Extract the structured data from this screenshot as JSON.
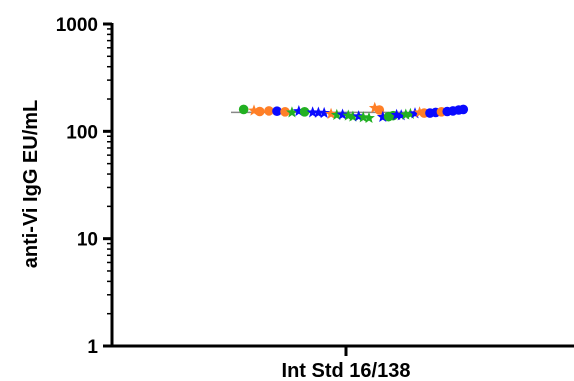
{
  "chart_data": {
    "type": "scatter",
    "title": "",
    "xlabel": "Int Std 16/138",
    "ylabel": "anti-Vi IgG EU/mL",
    "yscale": "log",
    "ylim": [
      1,
      1000
    ],
    "yticks": [
      1,
      10,
      100,
      1000
    ],
    "ytick_labels": [
      "1",
      "10",
      "100",
      "1000"
    ],
    "categories": [
      "Int Std 16/138"
    ],
    "colors": {
      "green": "#22b022",
      "orange": "#ff7f27",
      "blue": "#0a0aff",
      "line": "#888888"
    },
    "summary_line": 150,
    "points": [
      {
        "offset": -0.89,
        "y": 160,
        "color": "green",
        "marker": "circle"
      },
      {
        "offset": -0.8,
        "y": 156,
        "color": "orange",
        "marker": "star"
      },
      {
        "offset": -0.75,
        "y": 153,
        "color": "orange",
        "marker": "circle"
      },
      {
        "offset": -0.67,
        "y": 155,
        "color": "orange",
        "marker": "circle"
      },
      {
        "offset": -0.6,
        "y": 154,
        "color": "blue",
        "marker": "circle"
      },
      {
        "offset": -0.53,
        "y": 152,
        "color": "orange",
        "marker": "circle"
      },
      {
        "offset": -0.47,
        "y": 150,
        "color": "green",
        "marker": "star"
      },
      {
        "offset": -0.41,
        "y": 154,
        "color": "blue",
        "marker": "star"
      },
      {
        "offset": -0.36,
        "y": 152,
        "color": "green",
        "marker": "circle"
      },
      {
        "offset": -0.29,
        "y": 150,
        "color": "blue",
        "marker": "star"
      },
      {
        "offset": -0.24,
        "y": 149,
        "color": "blue",
        "marker": "star"
      },
      {
        "offset": -0.19,
        "y": 148,
        "color": "blue",
        "marker": "star"
      },
      {
        "offset": -0.13,
        "y": 145,
        "color": "orange",
        "marker": "star"
      },
      {
        "offset": -0.08,
        "y": 142,
        "color": "green",
        "marker": "star"
      },
      {
        "offset": -0.03,
        "y": 143,
        "color": "blue",
        "marker": "star"
      },
      {
        "offset": 0.02,
        "y": 140,
        "color": "green",
        "marker": "star"
      },
      {
        "offset": 0.06,
        "y": 137,
        "color": "green",
        "marker": "star"
      },
      {
        "offset": 0.11,
        "y": 138,
        "color": "blue",
        "marker": "star"
      },
      {
        "offset": 0.15,
        "y": 135,
        "color": "green",
        "marker": "star"
      },
      {
        "offset": 0.2,
        "y": 133,
        "color": "green",
        "marker": "star"
      },
      {
        "offset": 0.25,
        "y": 165,
        "color": "orange",
        "marker": "star"
      },
      {
        "offset": 0.29,
        "y": 158,
        "color": "orange",
        "marker": "circle"
      },
      {
        "offset": 0.32,
        "y": 136,
        "color": "blue",
        "marker": "star"
      },
      {
        "offset": 0.37,
        "y": 137,
        "color": "green",
        "marker": "circle"
      },
      {
        "offset": 0.41,
        "y": 140,
        "color": "green",
        "marker": "circle"
      },
      {
        "offset": 0.44,
        "y": 142,
        "color": "blue",
        "marker": "star"
      },
      {
        "offset": 0.48,
        "y": 141,
        "color": "blue",
        "marker": "star"
      },
      {
        "offset": 0.52,
        "y": 143,
        "color": "green",
        "marker": "star"
      },
      {
        "offset": 0.56,
        "y": 145,
        "color": "green",
        "marker": "star"
      },
      {
        "offset": 0.6,
        "y": 147,
        "color": "blue",
        "marker": "star"
      },
      {
        "offset": 0.64,
        "y": 150,
        "color": "orange",
        "marker": "star"
      },
      {
        "offset": 0.68,
        "y": 148,
        "color": "orange",
        "marker": "circle"
      },
      {
        "offset": 0.73,
        "y": 148,
        "color": "blue",
        "marker": "circle"
      },
      {
        "offset": 0.78,
        "y": 150,
        "color": "blue",
        "marker": "circle"
      },
      {
        "offset": 0.83,
        "y": 152,
        "color": "orange",
        "marker": "circle"
      },
      {
        "offset": 0.88,
        "y": 153,
        "color": "blue",
        "marker": "circle"
      },
      {
        "offset": 0.93,
        "y": 155,
        "color": "blue",
        "marker": "circle"
      },
      {
        "offset": 0.98,
        "y": 158,
        "color": "blue",
        "marker": "circle"
      },
      {
        "offset": 1.02,
        "y": 160,
        "color": "blue",
        "marker": "circle"
      }
    ]
  }
}
